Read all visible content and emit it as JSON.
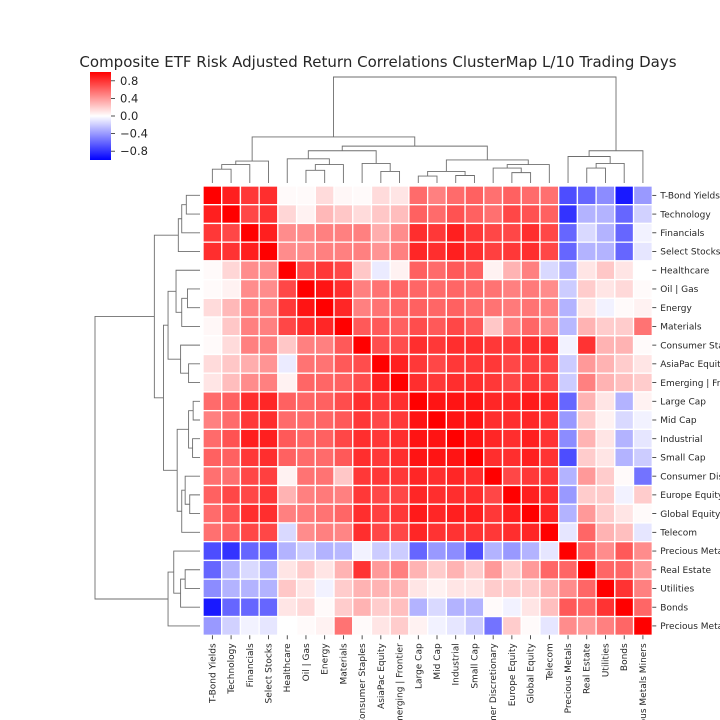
{
  "chart_data": {
    "type": "heatmap",
    "title": "Composite ETF Risk Adjusted Return Correlations ClusterMap L/10 Trading Days",
    "labels": [
      "T-Bond Yields",
      "Technology",
      "Financials",
      "Select Stocks",
      "Healthcare",
      "Oil | Gas",
      "Energy",
      "Materials",
      "Consumer Staples",
      "AsiaPac Equity",
      "Emerging | Frontier",
      "Large Cap",
      "Mid Cap",
      "Industrial",
      "Small Cap",
      "Consumer Discretionary",
      "Europe Equity",
      "Global Equity",
      "Telecom",
      "Precious Metals",
      "Real Estate",
      "Utilities",
      "Bonds",
      "Precious Metals Miners"
    ],
    "row_labels_visible": [
      "T-Bond Yields",
      "Technology",
      "Financials",
      "Select Stocks",
      "Healthcare",
      "Oil | Gas",
      "Energy",
      "Materials",
      "Consumer Sta",
      "AsiaPac Equit",
      "Emerging | Fro",
      "Large Cap",
      "Mid Cap",
      "Industrial",
      "Small Cap",
      "Consumer Dis",
      "Europe Equity",
      "Global Equity",
      "Telecom",
      "Precious Meta",
      "Real Estate",
      "Utilities",
      "Bonds",
      "Precious Meta"
    ],
    "col_labels_visible": [
      "T-Bond Yields",
      "Technology",
      "Financials",
      "Select Stocks",
      "Healthcare",
      "Oil | Gas",
      "Energy",
      "Materials",
      "Consumer Staples",
      "AsiaPac Equity",
      "merging | Frontier",
      "Large Cap",
      "Mid Cap",
      "Industrial",
      "Small Cap",
      "mer Discretionary",
      "Europe Equity",
      "Global Equity",
      "Telecom",
      "Precious Metals",
      "Real Estate",
      "Utilities",
      "Bonds",
      "ous Metals Miners"
    ],
    "colorbar": {
      "vmin": -1,
      "vmax": 1,
      "ticks": [
        0.8,
        0.4,
        0.0,
        -0.4,
        -0.8
      ],
      "tick_labels": [
        "0.8",
        "0.4",
        "0.0",
        "−0.4",
        "−0.8"
      ],
      "cmap": "bwr"
    },
    "values": [
      [
        1.0,
        0.88,
        0.78,
        0.82,
        0.02,
        0.02,
        0.14,
        0.03,
        0.02,
        0.14,
        0.1,
        0.58,
        0.5,
        0.58,
        0.62,
        0.56,
        0.62,
        0.58,
        0.56,
        -0.7,
        -0.6,
        -0.45,
        -0.9,
        -0.4
      ],
      [
        0.88,
        1.0,
        0.72,
        0.8,
        0.16,
        0.05,
        0.28,
        0.22,
        0.14,
        0.22,
        0.26,
        0.62,
        0.58,
        0.68,
        0.62,
        0.56,
        0.72,
        0.68,
        0.62,
        -0.8,
        -0.3,
        -0.3,
        -0.6,
        -0.18
      ],
      [
        0.78,
        0.72,
        1.0,
        0.88,
        0.45,
        0.45,
        0.5,
        0.5,
        0.5,
        0.32,
        0.45,
        0.82,
        0.78,
        0.88,
        0.78,
        0.72,
        0.72,
        0.82,
        0.72,
        -0.6,
        -0.15,
        -0.3,
        -0.6,
        -0.05
      ],
      [
        0.82,
        0.8,
        0.88,
        1.0,
        0.45,
        0.45,
        0.5,
        0.5,
        0.5,
        0.42,
        0.5,
        0.85,
        0.82,
        0.88,
        0.82,
        0.75,
        0.78,
        0.82,
        0.72,
        -0.6,
        -0.3,
        -0.3,
        -0.6,
        -0.1
      ],
      [
        0.02,
        0.16,
        0.45,
        0.45,
        1.0,
        0.72,
        0.78,
        0.72,
        0.22,
        -0.08,
        0.05,
        0.62,
        0.58,
        0.65,
        0.62,
        0.05,
        0.3,
        0.5,
        -0.15,
        -0.3,
        0.1,
        0.22,
        0.1,
        0.0
      ],
      [
        0.02,
        0.05,
        0.45,
        0.45,
        0.72,
        1.0,
        0.92,
        0.82,
        0.5,
        0.55,
        0.6,
        0.6,
        0.58,
        0.6,
        0.58,
        0.55,
        0.5,
        0.52,
        0.45,
        -0.2,
        0.2,
        0.1,
        0.15,
        0.02
      ],
      [
        0.14,
        0.28,
        0.5,
        0.5,
        0.78,
        0.92,
        1.0,
        0.85,
        0.5,
        0.55,
        0.6,
        0.62,
        0.6,
        0.62,
        0.58,
        0.55,
        0.52,
        0.55,
        0.5,
        -0.3,
        0.1,
        -0.05,
        0.02,
        0.05
      ],
      [
        0.03,
        0.22,
        0.5,
        0.5,
        0.72,
        0.82,
        0.85,
        1.0,
        0.65,
        0.65,
        0.62,
        0.7,
        0.65,
        0.72,
        0.65,
        0.22,
        0.5,
        0.6,
        0.48,
        -0.28,
        0.3,
        0.2,
        0.2,
        0.55
      ],
      [
        0.02,
        0.14,
        0.5,
        0.5,
        0.22,
        0.5,
        0.5,
        0.65,
        1.0,
        0.7,
        0.7,
        0.82,
        0.78,
        0.82,
        0.82,
        0.78,
        0.78,
        0.82,
        0.82,
        -0.05,
        0.8,
        0.3,
        0.3,
        0.02
      ],
      [
        0.14,
        0.22,
        0.32,
        0.42,
        -0.08,
        0.55,
        0.55,
        0.65,
        0.7,
        1.0,
        0.88,
        0.78,
        0.72,
        0.78,
        0.78,
        0.78,
        0.72,
        0.75,
        0.72,
        -0.2,
        0.4,
        0.3,
        0.2,
        0.1
      ],
      [
        0.1,
        0.26,
        0.45,
        0.5,
        0.05,
        0.6,
        0.6,
        0.62,
        0.7,
        0.88,
        1.0,
        0.82,
        0.78,
        0.82,
        0.82,
        0.78,
        0.72,
        0.78,
        0.72,
        -0.2,
        0.5,
        0.3,
        0.25,
        0.2
      ],
      [
        0.58,
        0.62,
        0.82,
        0.85,
        0.62,
        0.6,
        0.62,
        0.7,
        0.82,
        0.78,
        0.82,
        1.0,
        0.92,
        0.92,
        0.92,
        0.85,
        0.85,
        0.9,
        0.85,
        -0.6,
        0.3,
        0.1,
        -0.3,
        0.05
      ],
      [
        0.5,
        0.58,
        0.78,
        0.82,
        0.58,
        0.58,
        0.6,
        0.65,
        0.78,
        0.72,
        0.78,
        0.92,
        1.0,
        0.92,
        0.92,
        0.82,
        0.82,
        0.85,
        0.8,
        -0.4,
        0.2,
        0.05,
        -0.15,
        -0.05
      ],
      [
        0.58,
        0.68,
        0.88,
        0.88,
        0.65,
        0.6,
        0.62,
        0.72,
        0.82,
        0.78,
        0.82,
        0.92,
        0.92,
        1.0,
        0.92,
        0.85,
        0.82,
        0.88,
        0.8,
        -0.45,
        0.3,
        0.1,
        -0.3,
        -0.1
      ],
      [
        0.62,
        0.62,
        0.78,
        0.82,
        0.62,
        0.58,
        0.58,
        0.65,
        0.82,
        0.78,
        0.82,
        0.92,
        0.92,
        0.92,
        1.0,
        0.82,
        0.82,
        0.88,
        0.8,
        -0.7,
        0.2,
        0.1,
        -0.3,
        -0.2
      ],
      [
        0.56,
        0.56,
        0.72,
        0.75,
        0.05,
        0.55,
        0.55,
        0.22,
        0.78,
        0.78,
        0.78,
        0.85,
        0.82,
        0.85,
        0.82,
        1.0,
        0.72,
        0.78,
        0.78,
        -0.3,
        0.4,
        0.2,
        0.02,
        -0.55
      ],
      [
        0.62,
        0.72,
        0.72,
        0.78,
        0.3,
        0.5,
        0.52,
        0.5,
        0.78,
        0.72,
        0.72,
        0.85,
        0.82,
        0.82,
        0.82,
        0.72,
        1.0,
        0.88,
        0.82,
        -0.4,
        0.2,
        0.2,
        -0.05,
        0.2
      ],
      [
        0.58,
        0.68,
        0.82,
        0.82,
        0.5,
        0.52,
        0.55,
        0.6,
        0.82,
        0.75,
        0.78,
        0.9,
        0.85,
        0.88,
        0.88,
        0.78,
        0.88,
        1.0,
        0.85,
        -0.3,
        0.4,
        0.2,
        0.1,
        0.02
      ],
      [
        0.56,
        0.62,
        0.72,
        0.72,
        -0.15,
        0.45,
        0.5,
        0.48,
        0.82,
        0.72,
        0.72,
        0.85,
        0.8,
        0.8,
        0.8,
        0.78,
        0.82,
        0.85,
        1.0,
        -0.1,
        0.6,
        0.3,
        0.25,
        -0.1
      ],
      [
        -0.7,
        -0.8,
        -0.6,
        -0.6,
        -0.3,
        -0.2,
        -0.3,
        -0.28,
        -0.05,
        -0.2,
        -0.2,
        -0.6,
        -0.4,
        -0.45,
        -0.7,
        -0.3,
        -0.4,
        -0.3,
        -0.1,
        1.0,
        0.6,
        0.45,
        0.65,
        0.45
      ],
      [
        -0.6,
        -0.3,
        -0.15,
        -0.3,
        0.1,
        0.2,
        0.1,
        0.3,
        0.8,
        0.4,
        0.5,
        0.3,
        0.2,
        0.3,
        0.2,
        0.4,
        0.2,
        0.4,
        0.6,
        0.6,
        1.0,
        0.6,
        0.6,
        0.4
      ],
      [
        -0.45,
        -0.3,
        -0.3,
        -0.3,
        0.22,
        0.1,
        -0.05,
        0.2,
        0.3,
        0.3,
        0.3,
        0.1,
        0.05,
        0.1,
        0.1,
        0.2,
        0.2,
        0.2,
        0.3,
        0.45,
        0.6,
        1.0,
        0.8,
        0.5
      ],
      [
        -0.9,
        -0.6,
        -0.6,
        -0.6,
        0.1,
        0.15,
        0.02,
        0.2,
        0.3,
        0.2,
        0.25,
        -0.3,
        -0.15,
        -0.3,
        -0.3,
        0.02,
        -0.05,
        0.1,
        0.25,
        0.65,
        0.6,
        0.8,
        1.0,
        0.6
      ],
      [
        -0.4,
        -0.18,
        -0.05,
        -0.1,
        0.0,
        0.02,
        0.05,
        0.55,
        0.02,
        0.1,
        0.2,
        0.05,
        -0.05,
        -0.1,
        -0.2,
        -0.55,
        0.2,
        0.02,
        -0.1,
        0.45,
        0.4,
        0.5,
        0.6,
        1.0
      ]
    ],
    "linkage": [
      [
        0,
        1,
        1.2
      ],
      [
        24,
        2,
        1.6
      ],
      [
        25,
        3,
        1.9
      ],
      [
        5,
        6,
        1.1
      ],
      [
        27,
        7,
        1.6
      ],
      [
        4,
        28,
        2.1
      ],
      [
        9,
        10,
        1.0
      ],
      [
        8,
        30,
        1.7
      ],
      [
        29,
        31,
        2.8
      ],
      [
        11,
        12,
        0.6
      ],
      [
        13,
        14,
        0.65
      ],
      [
        33,
        34,
        1.0
      ],
      [
        16,
        17,
        0.9
      ],
      [
        15,
        36,
        1.3
      ],
      [
        37,
        18,
        1.6
      ],
      [
        35,
        38,
        2.0
      ],
      [
        32,
        39,
        3.2
      ],
      [
        26,
        40,
        4.0
      ],
      [
        20,
        21,
        1.3
      ],
      [
        42,
        22,
        1.7
      ],
      [
        19,
        43,
        2.3
      ],
      [
        44,
        23,
        2.8
      ],
      [
        41,
        45,
        9.2
      ]
    ]
  }
}
